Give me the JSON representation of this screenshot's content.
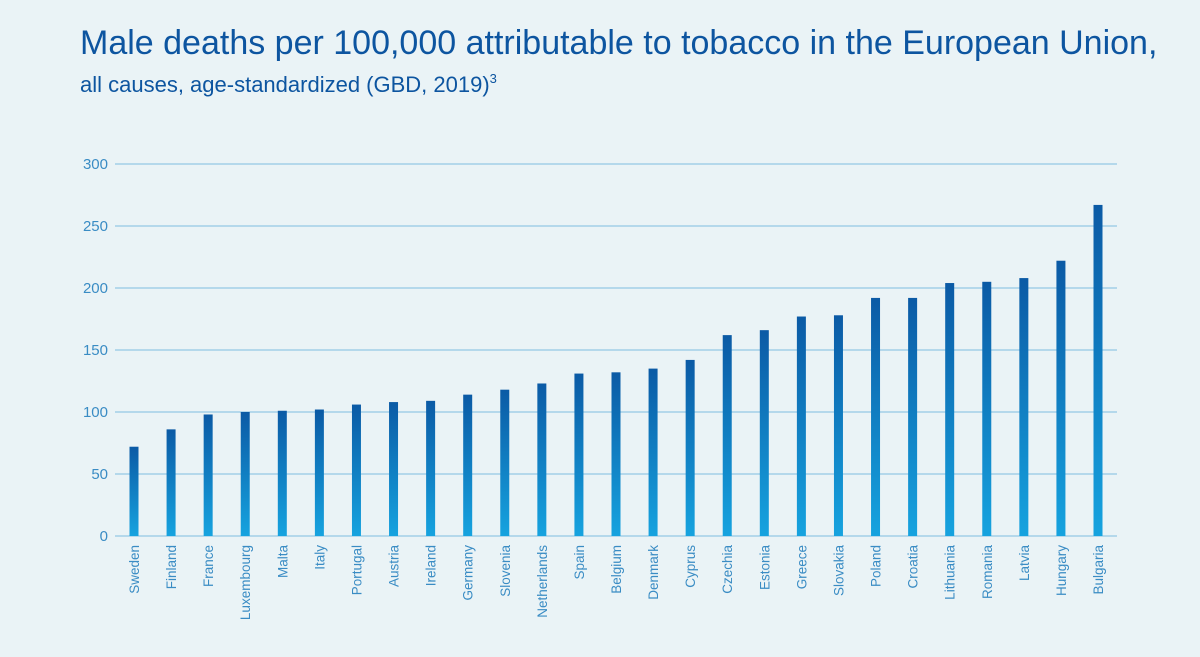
{
  "chart_data": {
    "type": "bar",
    "title": "Male deaths per 100,000 attributable to tobacco in the European Union,",
    "subtitle": "all causes, age-standardized (GBD, 2019)",
    "subtitle_sup": "3",
    "xlabel": "",
    "ylabel": "",
    "ylim": [
      0,
      300
    ],
    "yticks": [
      "0",
      "50",
      "100",
      "150",
      "200",
      "250",
      "300"
    ],
    "grid": true,
    "categories": [
      "Sweden",
      "Finland",
      "France",
      "Luxembourg",
      "Malta",
      "Italy",
      "Portugal",
      "Austria",
      "Ireland",
      "Germany",
      "Slovenia",
      "Netherlands",
      "Spain",
      "Belgium",
      "Denmark",
      "Cyprus",
      "Czechia",
      "Estonia",
      "Greece",
      "Slovakia",
      "Poland",
      "Croatia",
      "Lithuania",
      "Romania",
      "Latvia",
      "Hungary",
      "Bulgaria"
    ],
    "values": [
      72,
      86,
      98,
      100,
      101,
      102,
      106,
      108,
      109,
      114,
      118,
      123,
      131,
      132,
      135,
      142,
      162,
      166,
      177,
      178,
      192,
      192,
      204,
      205,
      208,
      222,
      267
    ],
    "colors": {
      "bar_top": "#0b5aa5",
      "bar_bottom": "#16a3df"
    }
  }
}
